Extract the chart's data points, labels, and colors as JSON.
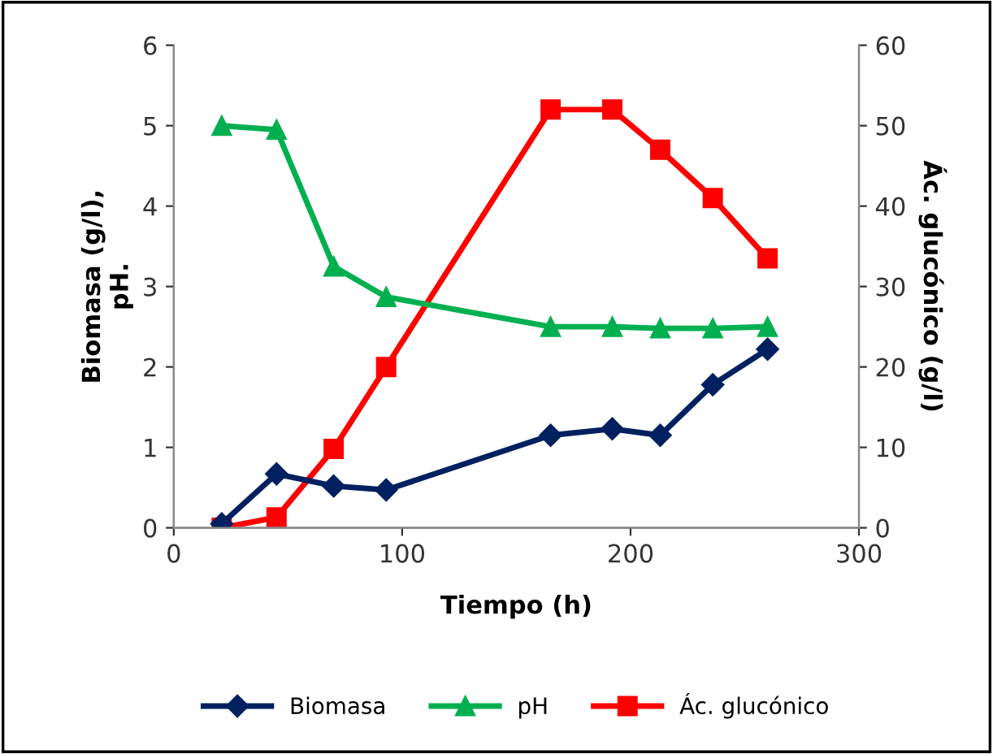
{
  "chart_data": {
    "type": "line",
    "xlabel": "Tiempo (h)",
    "ylabel": "Biomasa (g/l),\npH.",
    "y2label": "Ác. glucónico (g/l)",
    "x": [
      21,
      45,
      70,
      93,
      165,
      192,
      213,
      236,
      260
    ],
    "xlim": [
      0,
      300
    ],
    "xticks": [
      0,
      100,
      200,
      300
    ],
    "ylim": [
      0,
      6
    ],
    "yticks": [
      0,
      1,
      2,
      3,
      4,
      5,
      6
    ],
    "y2lim": [
      0,
      60
    ],
    "y2ticks": [
      0,
      10,
      20,
      30,
      40,
      50,
      60
    ],
    "grid": false,
    "legend": "bottom",
    "line_style": "solid",
    "series": [
      {
        "name": "Biomasa",
        "color": "#002060",
        "marker": "diamond",
        "values": [
          0.05,
          0.67,
          0.52,
          0.47,
          1.15,
          1.23,
          1.15,
          1.78,
          2.22
        ]
      },
      {
        "name": "pH",
        "color": "#00b050",
        "marker": "triangle",
        "values": [
          5.0,
          4.95,
          3.25,
          2.87,
          2.5,
          2.5,
          2.48,
          2.48,
          2.5
        ]
      },
      {
        "name": "Ác. glucónico",
        "color": "#ff0000",
        "marker": "square",
        "axis": "y2",
        "values": [
          0,
          1.3,
          9.8,
          20,
          52,
          52,
          47,
          41,
          33.5
        ]
      }
    ]
  }
}
